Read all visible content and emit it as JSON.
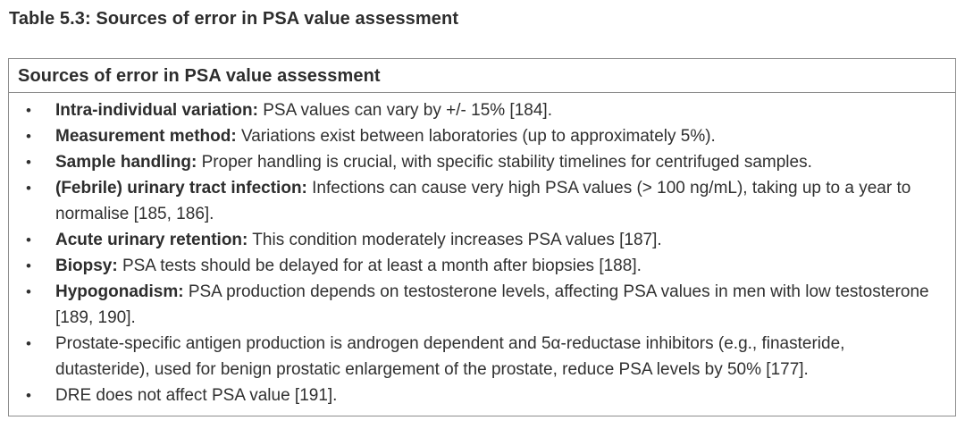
{
  "page": {
    "caption": "Table 5.3: Sources of error in PSA value assessment"
  },
  "table": {
    "header": "Sources of error in PSA value assessment",
    "bullet": "•",
    "items": [
      {
        "term": "Intra-individual variation:",
        "text": " PSA values can vary by +/- 15% [184]."
      },
      {
        "term": "Measurement method:",
        "text": " Variations exist between laboratories (up to approximately 5%)."
      },
      {
        "term": "Sample handling:",
        "text": " Proper handling is crucial, with specific stability timelines for centrifuged samples."
      },
      {
        "term": "(Febrile) urinary tract infection:",
        "text": " Infections can cause very high PSA values (> 100 ng/mL), taking up to a year to normalise [185, 186]."
      },
      {
        "term": "Acute urinary retention:",
        "text": " This condition moderately increases PSA values [187]."
      },
      {
        "term": "Biopsy:",
        "text": " PSA tests should be delayed for at least a month after biopsies [188]."
      },
      {
        "term": "Hypogonadism:",
        "text": " PSA production depends on testosterone levels, affecting PSA values in men with low testosterone [189, 190]."
      },
      {
        "term": "",
        "text": "Prostate-specific antigen production is androgen dependent and 5α-reductase inhibitors (e.g., finasteride, dutasteride), used for benign prostatic enlargement of the prostate, reduce PSA levels by 50% [177]."
      },
      {
        "term": "",
        "text": "DRE does not affect PSA value [191]."
      }
    ]
  },
  "colors": {
    "text": "#303030",
    "heading": "#2d2d2d",
    "border": "#8e8e8e",
    "background": "#ffffff"
  }
}
